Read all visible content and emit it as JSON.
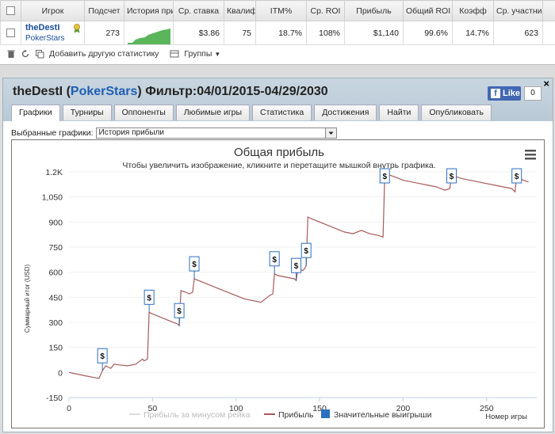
{
  "table": {
    "headers": [
      "Игрок",
      "Подсчет",
      "История при",
      "Ср. ставка",
      "Квалиф",
      "ITM%",
      "Ср. ROI",
      "Прибыль",
      "Общий ROI",
      "Коэфф",
      "Ср. участник"
    ],
    "row": {
      "player_name": "theDestI",
      "player_site": "PokerStars",
      "count": "273",
      "avg_stake": "$3.86",
      "qualif": "75",
      "itm": "18.7%",
      "avg_roi": "108%",
      "profit": "$1,140",
      "total_roi": "99.6%",
      "coeff": "14.7%",
      "avg_participants": "623"
    }
  },
  "toolbar": {
    "add_stats_label": "Добавить другую статистику",
    "groups_label": "Группы"
  },
  "panel": {
    "player": "theDestI",
    "site": "PokerStars",
    "filter": "Фильтр:04/01/2015-04/29/2030",
    "fb_like": "Like",
    "fb_count": "0",
    "tabs": [
      "Графики",
      "Турниры",
      "Оппоненты",
      "Любимые игры",
      "Статистика",
      "Достижения",
      "Найти",
      "Опубликовать"
    ],
    "selected_graphs_label": "Выбранные графики:",
    "selected_graph": "История прибыли"
  },
  "colors": {
    "profit_line": "#a85a5a",
    "rake_line": "#dddddd",
    "marker": "#2b6fc0",
    "accent": "#1f5fb4"
  },
  "chart_data": {
    "type": "line",
    "title": "Общая прибыль",
    "subtitle": "Чтобы увеличить изображение, кликните и перетащите мышкой внутрь графика.",
    "xlabel": "Номер игры",
    "ylabel": "Суммарный итог (USD)",
    "xlim": [
      0,
      280
    ],
    "ylim": [
      -150,
      1200
    ],
    "yticks": [
      "-150",
      "0",
      "150",
      "300",
      "450",
      "600",
      "750",
      "900",
      "1,050",
      "1.2K"
    ],
    "xticks": [
      "0",
      "50",
      "100",
      "150",
      "200",
      "250"
    ],
    "legend": [
      "Прибыль за минусом рейка",
      "Прибыль",
      "Значительные выигрыши"
    ],
    "legend_placement": "bottom",
    "series": [
      {
        "name": "Прибыль",
        "x": [
          0,
          5,
          10,
          15,
          18,
          20,
          22,
          25,
          27,
          30,
          35,
          40,
          44,
          45,
          47,
          48,
          50,
          55,
          60,
          65,
          66,
          67,
          70,
          72,
          74,
          75,
          80,
          90,
          100,
          105,
          110,
          115,
          120,
          122,
          123,
          125,
          130,
          135,
          136,
          137,
          140,
          141,
          142,
          143,
          145,
          150,
          155,
          160,
          165,
          170,
          175,
          180,
          185,
          188,
          189,
          190,
          192,
          195,
          200,
          205,
          210,
          215,
          220,
          225,
          228,
          229,
          230,
          232,
          235,
          240,
          245,
          250,
          255,
          260,
          265,
          267,
          268,
          270,
          272,
          275
        ],
        "y": [
          0,
          -10,
          -20,
          -30,
          -35,
          10,
          40,
          25,
          50,
          45,
          40,
          50,
          80,
          70,
          80,
          360,
          350,
          330,
          310,
          290,
          280,
          490,
          480,
          470,
          480,
          560,
          540,
          500,
          460,
          440,
          430,
          420,
          460,
          470,
          590,
          580,
          570,
          560,
          550,
          620,
          610,
          620,
          640,
          930,
          920,
          900,
          880,
          860,
          840,
          830,
          850,
          830,
          820,
          810,
          1180,
          1200,
          1180,
          1170,
          1150,
          1140,
          1130,
          1120,
          1110,
          1090,
          1100,
          1180,
          1180,
          1170,
          1160,
          1150,
          1140,
          1130,
          1120,
          1110,
          1100,
          1080,
          1180,
          1160,
          1150,
          1140
        ]
      }
    ],
    "big_wins": [
      20,
      48,
      66,
      75,
      123,
      136,
      142,
      189,
      229,
      268
    ],
    "big_win_label": "$"
  }
}
